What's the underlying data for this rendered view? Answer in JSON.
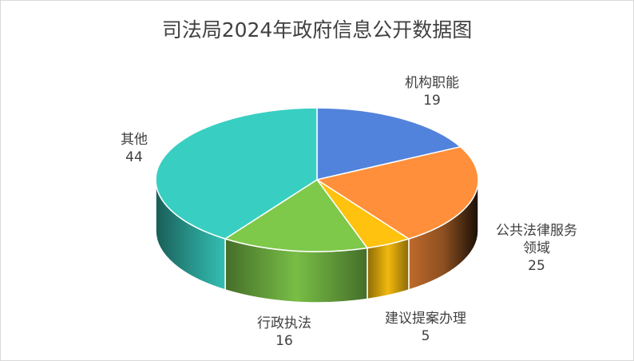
{
  "chart_data": {
    "type": "pie",
    "title": "司法局2024年政府信息公开数据图",
    "slices": [
      {
        "label": "机构职能",
        "value": 19,
        "color": "#5283dc",
        "label_lines": [
          "机构职能"
        ]
      },
      {
        "label": "公共法律服务领域",
        "value": 25,
        "color": "#ff8f3a",
        "label_lines": [
          "公共法律服务",
          "领域"
        ]
      },
      {
        "label": "建议提案办理",
        "value": 5,
        "color": "#ffc20e",
        "label_lines": [
          "建议提案办理"
        ]
      },
      {
        "label": "行政执法",
        "value": 16,
        "color": "#7ec84a",
        "label_lines": [
          "行政执法"
        ]
      },
      {
        "label": "其他",
        "value": 44,
        "color": "#38cfc2",
        "label_lines": [
          "其他"
        ]
      }
    ],
    "legend": "none",
    "data_labels": "category-and-value"
  }
}
